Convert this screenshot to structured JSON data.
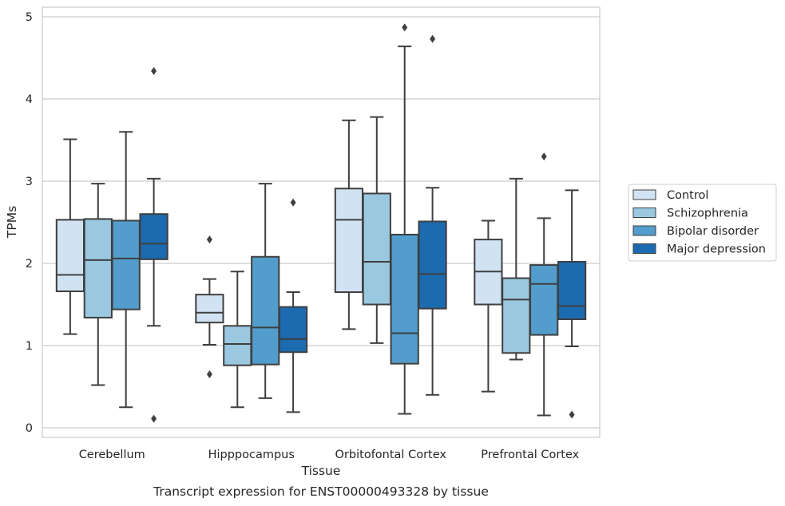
{
  "caption": "Transcript expression for ENST00000493328 by tissue",
  "chart_data": {
    "type": "box",
    "title": "",
    "xlabel": "Tissue",
    "ylabel": "TPMs",
    "ylim": [
      -0.1,
      5.1
    ],
    "yticks": [
      "0",
      "1",
      "2",
      "3",
      "4",
      "5"
    ],
    "grid": "horizontal",
    "legend_position": "right",
    "categories": [
      "Cerebellum",
      "Hipppocampus",
      "Orbitofontal Cortex",
      "Prefrontal Cortex"
    ],
    "series": [
      {
        "name": "Control",
        "color": "#d1e2f2",
        "boxes": [
          {
            "whislo": 1.14,
            "q1": 1.66,
            "med": 1.86,
            "q3": 2.53,
            "whishi": 3.51,
            "fliers": []
          },
          {
            "whislo": 1.01,
            "q1": 1.28,
            "med": 1.4,
            "q3": 1.62,
            "whishi": 1.81,
            "fliers": [
              2.29,
              0.65
            ]
          },
          {
            "whislo": 1.2,
            "q1": 1.65,
            "med": 2.53,
            "q3": 2.91,
            "whishi": 3.74,
            "fliers": []
          },
          {
            "whislo": 0.44,
            "q1": 1.5,
            "med": 1.9,
            "q3": 2.29,
            "whishi": 2.52,
            "fliers": []
          }
        ]
      },
      {
        "name": "Schizophrenia",
        "color": "#9ac8e0",
        "boxes": [
          {
            "whislo": 0.52,
            "q1": 1.34,
            "med": 2.04,
            "q3": 2.54,
            "whishi": 2.97,
            "fliers": []
          },
          {
            "whislo": 0.25,
            "q1": 0.76,
            "med": 1.02,
            "q3": 1.24,
            "whishi": 1.9,
            "fliers": []
          },
          {
            "whislo": 1.03,
            "q1": 1.5,
            "med": 2.02,
            "q3": 2.85,
            "whishi": 3.78,
            "fliers": []
          },
          {
            "whislo": 0.83,
            "q1": 0.91,
            "med": 1.56,
            "q3": 1.82,
            "whishi": 3.03,
            "fliers": []
          }
        ]
      },
      {
        "name": "Bipolar disorder",
        "color": "#529dcc",
        "boxes": [
          {
            "whislo": 0.25,
            "q1": 1.44,
            "med": 2.06,
            "q3": 2.52,
            "whishi": 3.6,
            "fliers": []
          },
          {
            "whislo": 0.36,
            "q1": 0.77,
            "med": 1.22,
            "q3": 2.08,
            "whishi": 2.97,
            "fliers": []
          },
          {
            "whislo": 0.17,
            "q1": 0.78,
            "med": 1.15,
            "q3": 2.35,
            "whishi": 4.64,
            "fliers": [
              4.87
            ]
          },
          {
            "whislo": 0.15,
            "q1": 1.13,
            "med": 1.75,
            "q3": 1.98,
            "whishi": 2.55,
            "fliers": [
              3.3
            ]
          }
        ]
      },
      {
        "name": "Major depression",
        "color": "#1c6aaf",
        "boxes": [
          {
            "whislo": 1.24,
            "q1": 2.05,
            "med": 2.24,
            "q3": 2.6,
            "whishi": 3.03,
            "fliers": [
              4.34,
              0.11
            ]
          },
          {
            "whislo": 0.19,
            "q1": 0.92,
            "med": 1.08,
            "q3": 1.47,
            "whishi": 1.65,
            "fliers": [
              2.74
            ]
          },
          {
            "whislo": 0.4,
            "q1": 1.45,
            "med": 1.87,
            "q3": 2.51,
            "whishi": 2.92,
            "fliers": [
              4.73
            ]
          },
          {
            "whislo": 0.99,
            "q1": 1.32,
            "med": 1.48,
            "q3": 2.02,
            "whishi": 2.89,
            "fliers": [
              0.16
            ]
          }
        ]
      }
    ]
  }
}
